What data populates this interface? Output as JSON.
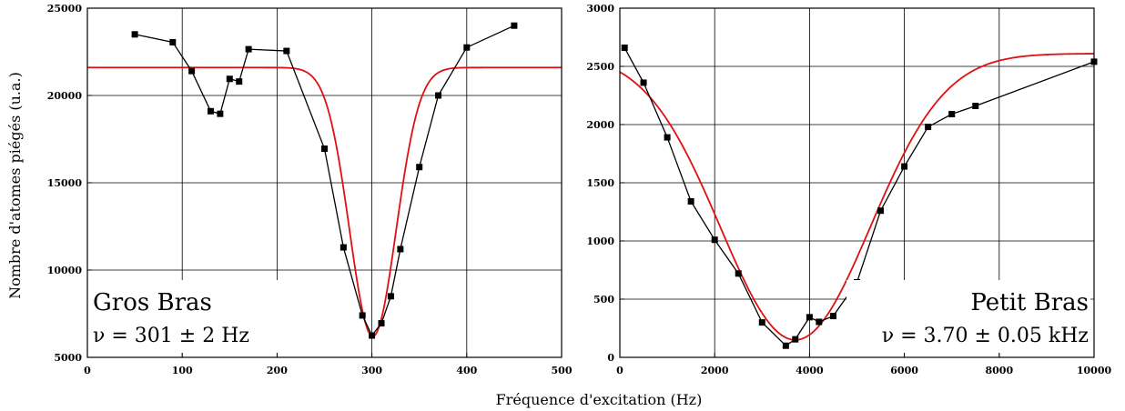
{
  "xlabel": "Fréquence d'excitation (Hz)",
  "ylabel": "Nombre d'atomes piégés (u.a.)",
  "colors": {
    "data": "#000000",
    "fit": "#e01010"
  },
  "chart_data": [
    {
      "type": "line",
      "xlim": [
        0,
        500
      ],
      "ylim": [
        5000,
        25000
      ],
      "xticks": [
        0,
        100,
        200,
        300,
        400,
        500
      ],
      "yticks": [
        5000,
        10000,
        15000,
        20000,
        25000
      ],
      "grid": true,
      "annotation": {
        "title": "Gros Bras",
        "formula": "ν = 301 ± 2 Hz",
        "position": "bottom-left"
      },
      "series": [
        {
          "kind": "data",
          "marker": "square",
          "points": [
            [
              50,
              23500
            ],
            [
              90,
              23050
            ],
            [
              110,
              21400
            ],
            [
              130,
              19100
            ],
            [
              140,
              18950
            ],
            [
              150,
              20950
            ],
            [
              160,
              20800
            ],
            [
              170,
              22650
            ],
            [
              210,
              22550
            ],
            [
              250,
              16950
            ],
            [
              270,
              11300
            ],
            [
              290,
              7400
            ],
            [
              300,
              6250
            ],
            [
              310,
              6950
            ],
            [
              320,
              8500
            ],
            [
              330,
              11200
            ],
            [
              350,
              15900
            ],
            [
              370,
              20000
            ],
            [
              400,
              22750
            ],
            [
              450,
              24000
            ]
          ]
        },
        {
          "kind": "fit",
          "model": "gaussian",
          "baseline": 21600,
          "center": 301,
          "depth": 15400,
          "sigma": 24.5
        }
      ]
    },
    {
      "type": "line",
      "xlim": [
        0,
        10000
      ],
      "ylim": [
        0,
        3000
      ],
      "xticks": [
        0,
        2000,
        4000,
        6000,
        8000,
        10000
      ],
      "yticks": [
        0,
        500,
        1000,
        1500,
        2000,
        2500,
        3000
      ],
      "grid": true,
      "annotation": {
        "title": "Petit Bras",
        "formula": "ν = 3.70 ± 0.05 kHz",
        "position": "bottom-right"
      },
      "series": [
        {
          "kind": "data",
          "marker": "square",
          "points": [
            [
              100,
              2660
            ],
            [
              500,
              2360
            ],
            [
              1000,
              1890
            ],
            [
              1500,
              1340
            ],
            [
              2000,
              1010
            ],
            [
              2500,
              720
            ],
            [
              3000,
              300
            ],
            [
              3500,
              100
            ],
            [
              3700,
              155
            ],
            [
              4000,
              345
            ],
            [
              4200,
              305
            ],
            [
              4500,
              355
            ],
            [
              5000,
              645
            ],
            [
              5500,
              1260
            ],
            [
              6000,
              1640
            ],
            [
              6500,
              1980
            ],
            [
              7000,
              2090
            ],
            [
              7500,
              2160
            ],
            [
              10000,
              2540
            ]
          ]
        },
        {
          "kind": "fit",
          "model": "gaussian",
          "baseline": 2610,
          "center": 3700,
          "depth": 2460,
          "sigma": 1580
        }
      ]
    }
  ]
}
